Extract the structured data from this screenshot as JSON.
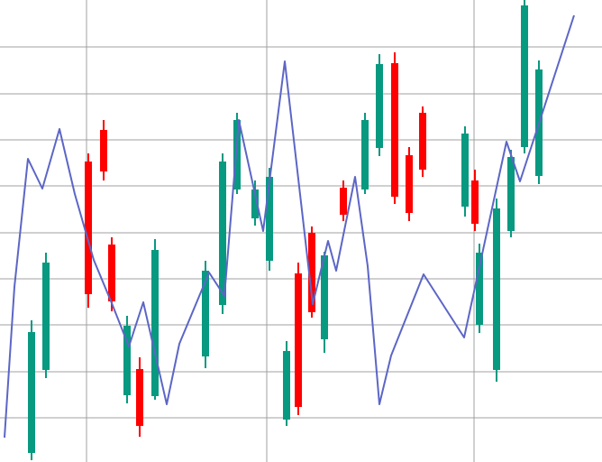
{
  "chart_data": [
    {
      "type": "candlestick",
      "x": [
        35,
        51,
        98,
        115,
        124,
        141,
        155,
        172,
        228,
        247,
        263,
        283,
        299,
        318,
        331,
        346,
        360,
        381,
        405,
        421,
        438,
        454,
        469,
        516,
        527,
        532,
        551,
        567,
        582,
        598
      ],
      "open": [
        -39,
        53,
        284,
        319,
        192,
        25,
        54,
        24,
        68,
        125,
        253,
        221,
        174,
        -2,
        160,
        205,
        87,
        255,
        253,
        299,
        393,
        291,
        338,
        234,
        263,
        103,
        53,
        207,
        300,
        268
      ],
      "high": [
        108,
        183,
        293,
        330,
        200,
        113,
        67,
        198,
        174,
        293,
        338,
        263,
        277,
        85,
        172,
        212,
        184,
        263,
        338,
        403,
        405,
        300,
        345,
        323,
        275,
        193,
        243,
        297,
        463,
        396
      ],
      "low": [
        -47,
        44,
        122,
        263,
        118,
        16,
        -21,
        20,
        55,
        115,
        248,
        213,
        163,
        -9,
        3,
        111,
        72,
        218,
        248,
        290,
        237,
        218,
        267,
        223,
        207,
        94,
        40,
        200,
        293,
        259
      ],
      "close": [
        95,
        172,
        137,
        273,
        129,
        102,
        -9,
        186,
        163,
        284,
        330,
        253,
        267,
        74,
        12,
        117,
        180,
        225,
        330,
        392,
        245,
        227,
        275,
        315,
        215,
        183,
        232,
        289,
        457,
        386
      ],
      "up_color": "#089981",
      "down_color": "#ff0000",
      "xlim": [
        0,
        668
      ],
      "ylim": [
        -49,
        463
      ],
      "xticks": [
        96,
        296,
        526
      ],
      "yticks": [
        0,
        51,
        103,
        154,
        205,
        257,
        308,
        359,
        411
      ],
      "grid": true
    },
    {
      "type": "line",
      "x": [
        5,
        16,
        31,
        47,
        66,
        83,
        104,
        124,
        143,
        159,
        185,
        199,
        232,
        249,
        265,
        292,
        316,
        347,
        364,
        373,
        394,
        408,
        421,
        434,
        470,
        515,
        562,
        577,
        597,
        637
      ],
      "values": [
        -22,
        145,
        287,
        254,
        320,
        248,
        175,
        127,
        79,
        128,
        15,
        82,
        161,
        135,
        330,
        207,
        395,
        126,
        196,
        163,
        267,
        168,
        15,
        69,
        159,
        89,
        306,
        262,
        323,
        446
      ],
      "color": "#5c66c6",
      "xlim": [
        0,
        668
      ],
      "ylim": [
        -49,
        463
      ]
    }
  ]
}
